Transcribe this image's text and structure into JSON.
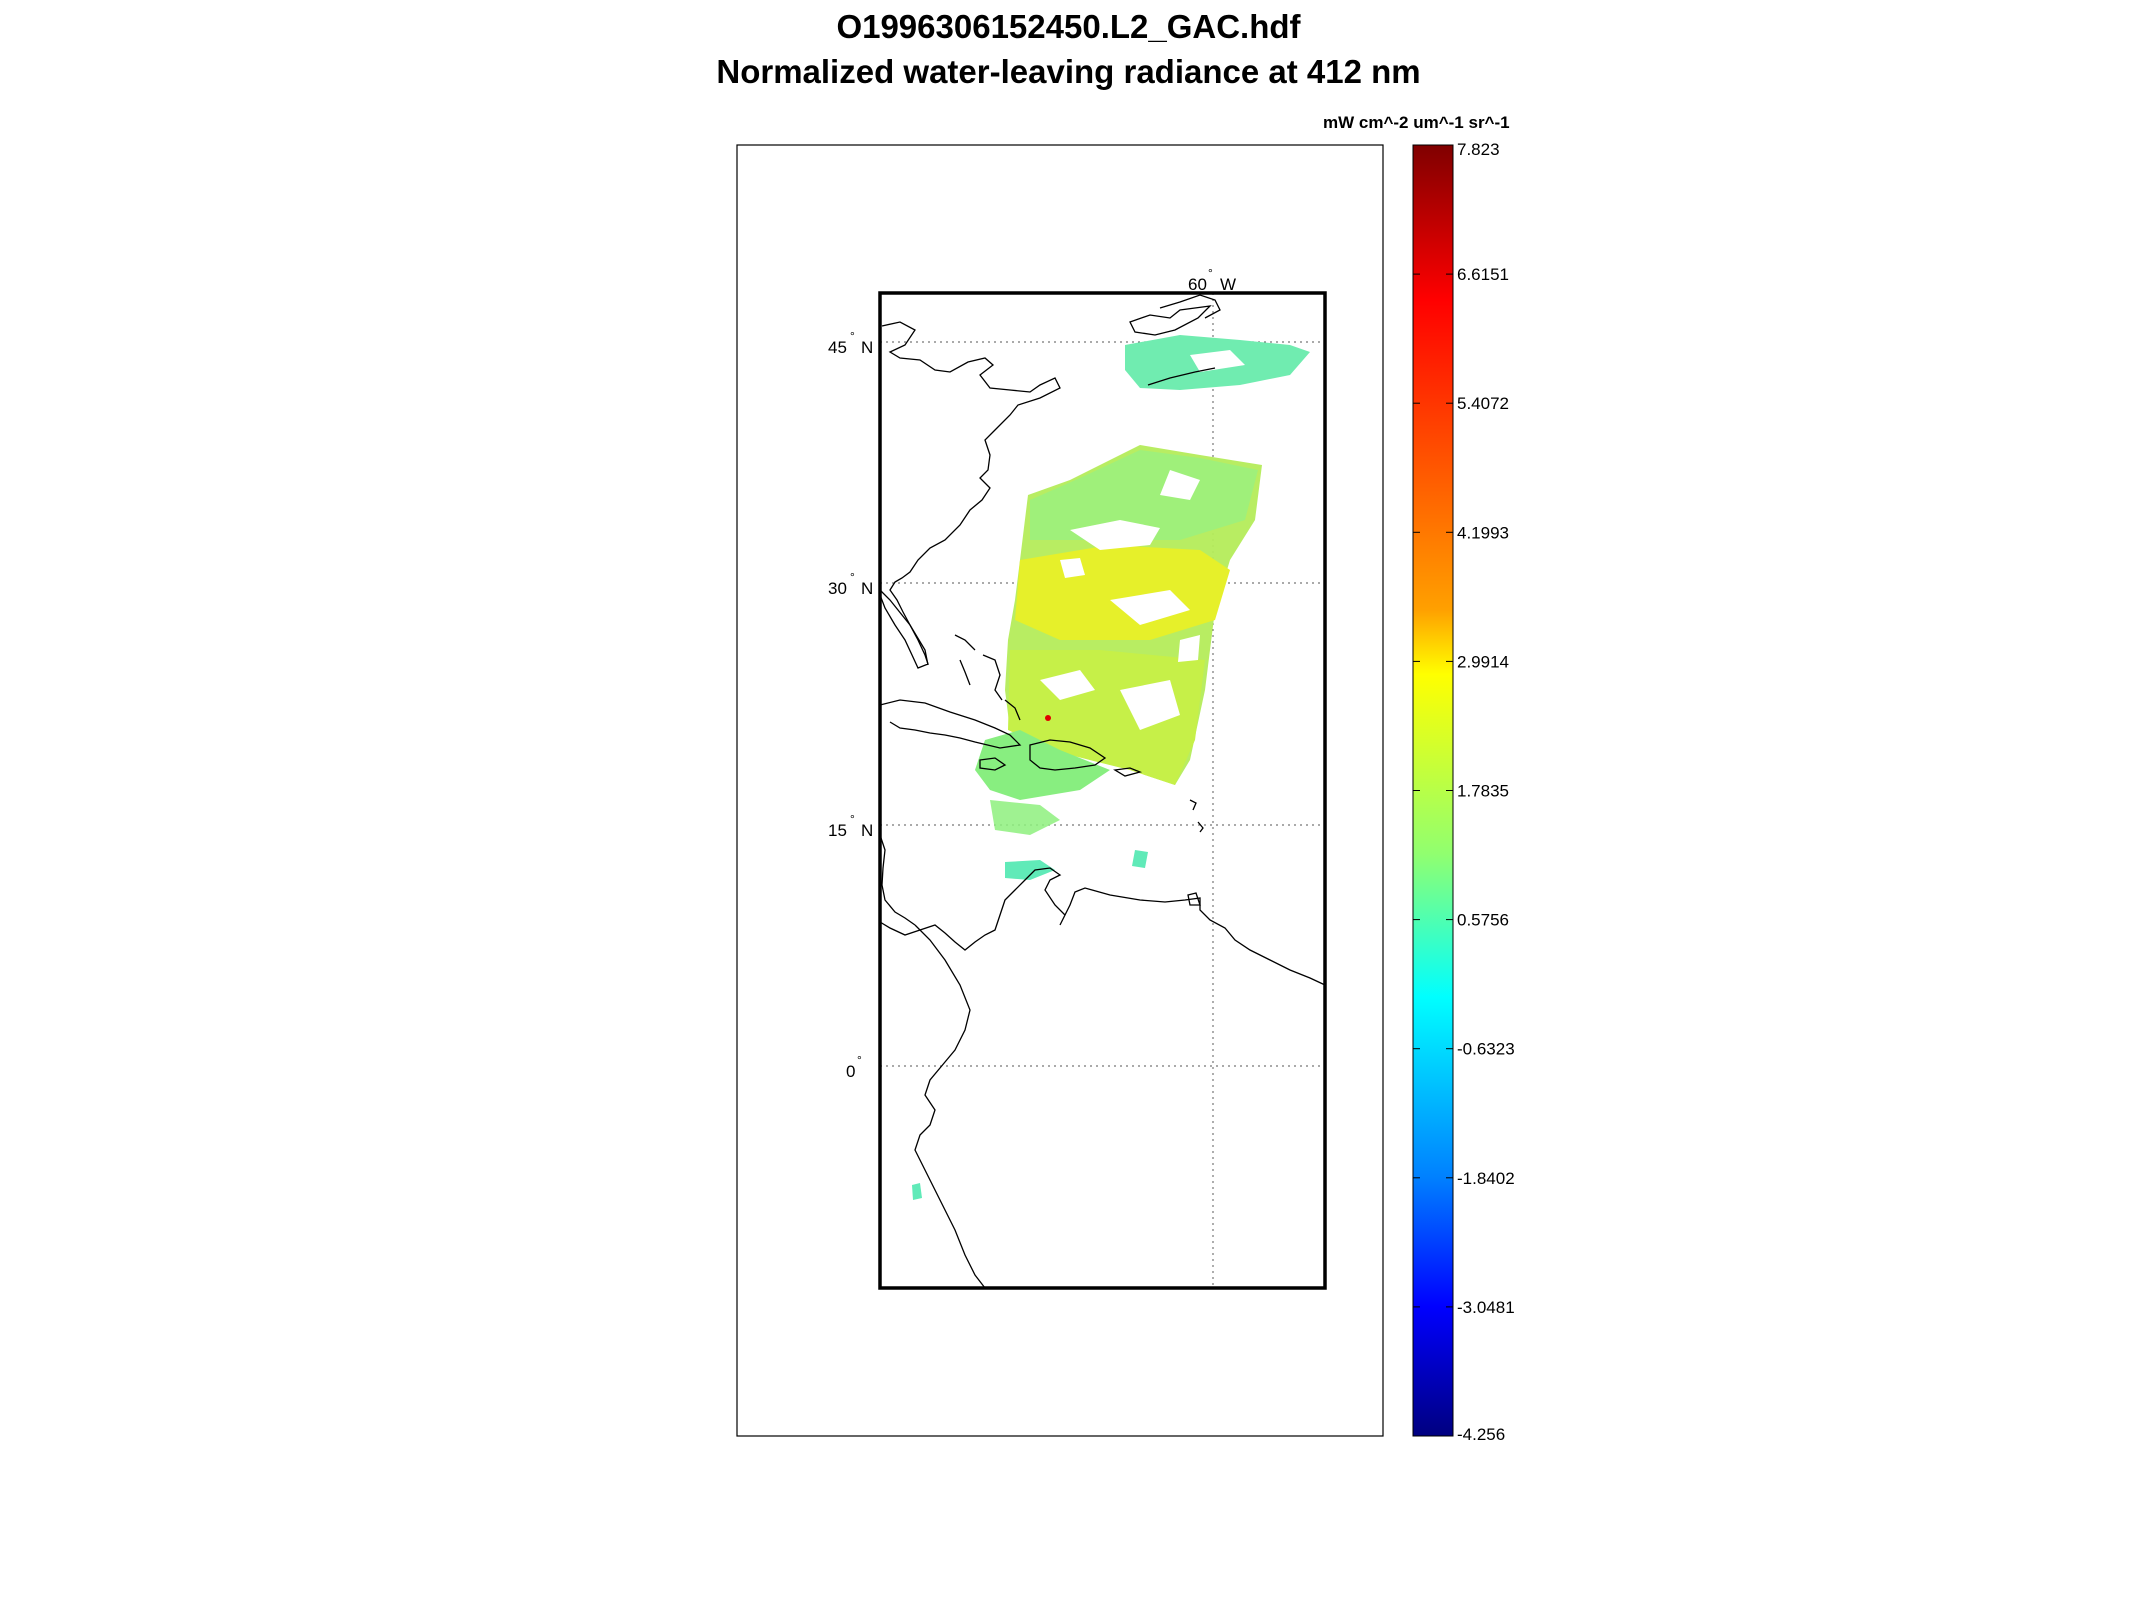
{
  "figure": {
    "filename": "O1996306152450.L2_GAC.hdf",
    "title": "Normalized water-leaving radiance at 412 nm"
  },
  "map": {
    "lat_labels": [
      {
        "value": "45",
        "hemisphere": "N"
      },
      {
        "value": "30",
        "hemisphere": "N"
      },
      {
        "value": "15",
        "hemisphere": "N"
      },
      {
        "value": "0",
        "hemisphere": ""
      }
    ],
    "lon_labels": [
      {
        "value": "60",
        "hemisphere": "W"
      }
    ],
    "degree_symbol": "°",
    "gridlines": "dotted",
    "coastline_color": "#000000"
  },
  "colorbar": {
    "units": "mW cm^-2 um^-1 sr^-1",
    "tick_labels": [
      "7.823",
      "6.6151",
      "5.4072",
      "4.1993",
      "2.9914",
      "1.7835",
      "0.5756",
      "-0.6323",
      "-1.8402",
      "-3.0481",
      "-4.256"
    ],
    "colormap": "jet",
    "colors": [
      "#800000",
      "#ff0000",
      "#ff8000",
      "#ffff00",
      "#80ff80",
      "#00ffff",
      "#0080ff",
      "#0000ff",
      "#000080"
    ]
  }
}
